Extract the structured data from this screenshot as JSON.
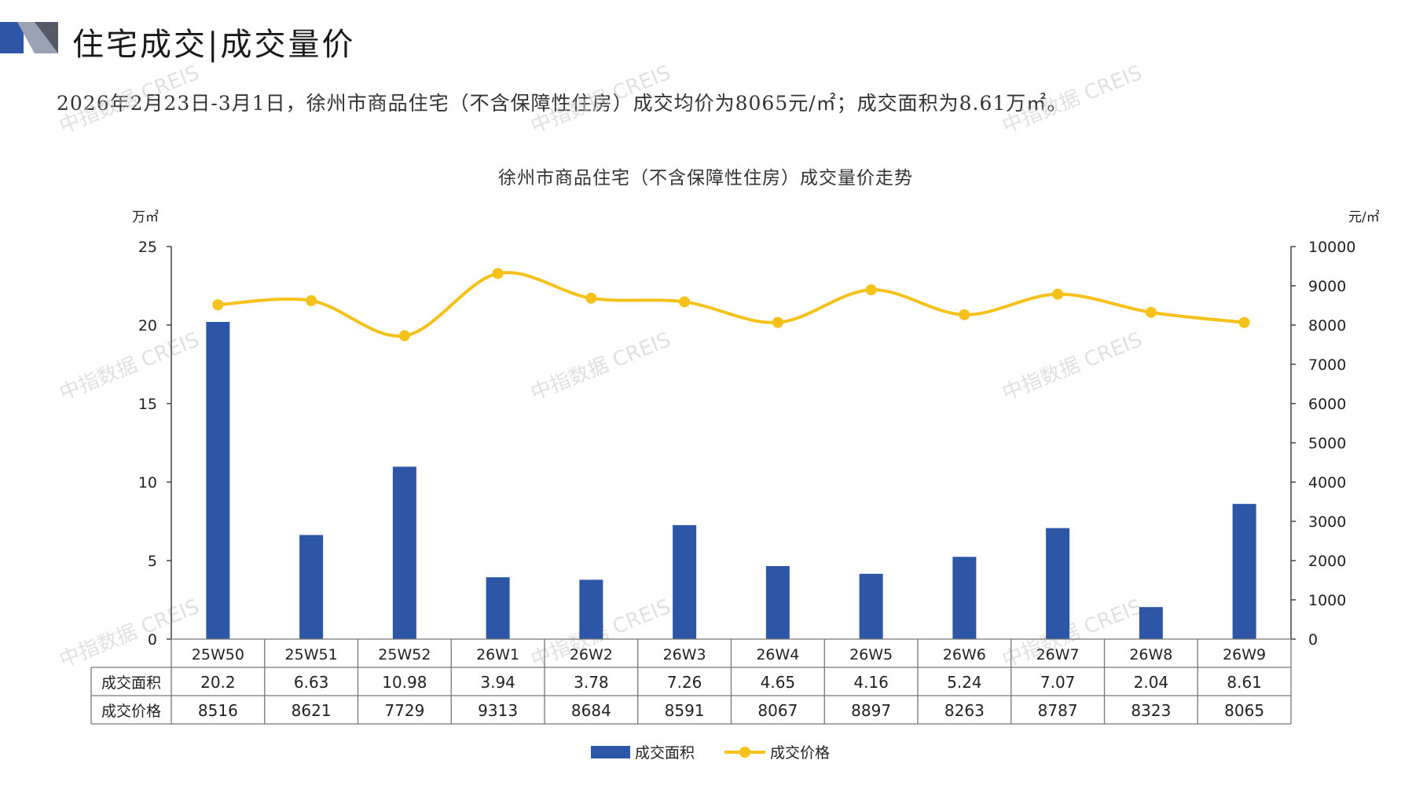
{
  "header": {
    "title": "住宅成交|成交量价",
    "summary": "2026年2月23日-3月1日，徐州市商品住宅（不含保障性住房）成交均价为8065元/㎡；成交面积为8.61万㎡。"
  },
  "watermark_text": "中指数据 CREIS",
  "colors": {
    "bar": "#2E56A6",
    "line": "#F5C21B",
    "grid": "#444444",
    "text": "#222222"
  },
  "chart_data": {
    "type": "bar",
    "title": "徐州市商品住宅（不含保障性住房）成交量价走势",
    "categories": [
      "25W50",
      "25W51",
      "25W52",
      "26W1",
      "26W2",
      "26W3",
      "26W4",
      "26W5",
      "26W6",
      "26W7",
      "26W8",
      "26W9"
    ],
    "y_left_unit": "万㎡",
    "y_right_unit": "元/㎡",
    "ylim_left": [
      0,
      25
    ],
    "yticks_left": [
      0,
      5,
      10,
      15,
      20,
      25
    ],
    "ylim_right": [
      0,
      10000
    ],
    "yticks_right": [
      0,
      1000,
      2000,
      3000,
      4000,
      5000,
      6000,
      7000,
      8000,
      9000,
      10000
    ],
    "series": [
      {
        "name": "成交面积",
        "type": "bar",
        "axis": "left",
        "values": [
          20.2,
          6.63,
          10.98,
          3.94,
          3.78,
          7.26,
          4.65,
          4.16,
          5.24,
          7.07,
          2.04,
          8.61
        ],
        "labels": [
          "20.2",
          "6.63",
          "10.98",
          "3.94",
          "3.78",
          "7.26",
          "4.65",
          "4.16",
          "5.24",
          "7.07",
          "2.04",
          "8.61"
        ]
      },
      {
        "name": "成交价格",
        "type": "line",
        "axis": "right",
        "values": [
          8516,
          8621,
          7729,
          9313,
          8684,
          8591,
          8067,
          8897,
          8263,
          8787,
          8323,
          8065
        ],
        "labels": [
          "8516",
          "8621",
          "7729",
          "9313",
          "8684",
          "8591",
          "8067",
          "8897",
          "8263",
          "8787",
          "8323",
          "8065"
        ]
      }
    ],
    "legend": "bottom",
    "data_table": true
  }
}
